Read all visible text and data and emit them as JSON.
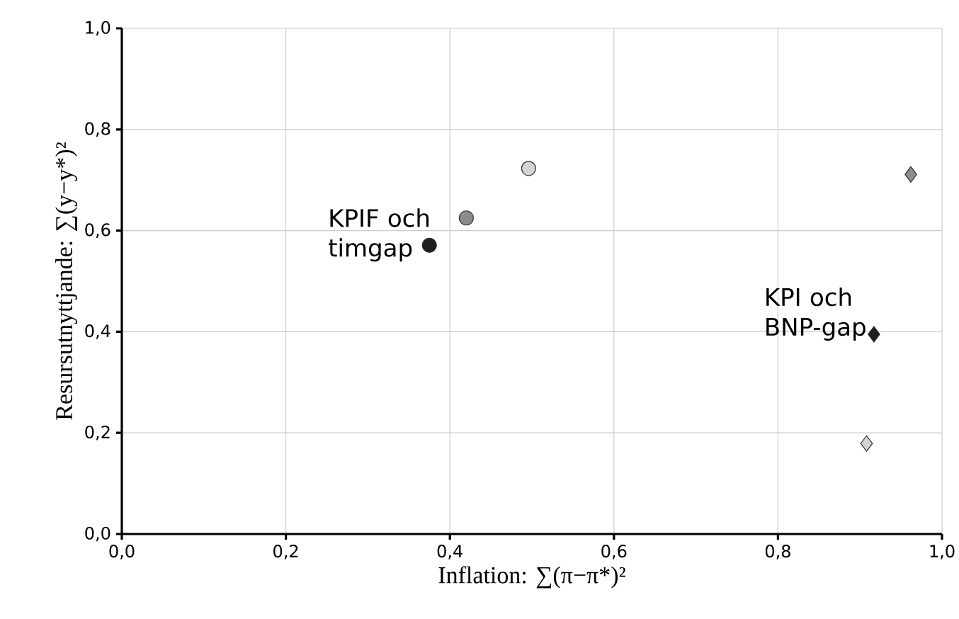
{
  "chart_data": {
    "type": "scatter",
    "xlabel": "Inflation: ∑(π−π*)²",
    "ylabel": "Resursutnyttjande: ∑(y−y*)²",
    "xlim": [
      0,
      1
    ],
    "ylim": [
      0,
      1
    ],
    "xticks": [
      {
        "value": 0,
        "label": "0,0"
      },
      {
        "value": 0.2,
        "label": "0,2"
      },
      {
        "value": 0.4,
        "label": "0,4"
      },
      {
        "value": 0.6,
        "label": "0,6"
      },
      {
        "value": 0.8,
        "label": "0,8"
      },
      {
        "value": 1,
        "label": "1,0"
      }
    ],
    "yticks": [
      {
        "value": 0,
        "label": "0,0"
      },
      {
        "value": 0.2,
        "label": "0,2"
      },
      {
        "value": 0.4,
        "label": "0,4"
      },
      {
        "value": 0.6,
        "label": "0,6"
      },
      {
        "value": 0.8,
        "label": "0,8"
      },
      {
        "value": 1,
        "label": "1,0"
      }
    ],
    "grid": true,
    "series": [
      {
        "marker": "circle",
        "x": [
          0.375,
          0.42,
          0.496
        ],
        "values": [
          0.571,
          0.625,
          0.723
        ],
        "colors": [
          "#1e1e1e",
          "#8c8c8c",
          "#d4d4d4"
        ]
      },
      {
        "marker": "diamond",
        "x": [
          0.917,
          0.962,
          0.908
        ],
        "values": [
          0.395,
          0.711,
          0.179
        ],
        "colors": [
          "#1e1e1e",
          "#8c8c8c",
          "#d4d4d4"
        ]
      }
    ],
    "annotations": [
      {
        "text": "KPIF och timgap",
        "x": 0.375,
        "y": 0.571
      },
      {
        "text": "KPI och BNP-gap",
        "x": 0.917,
        "y": 0.395
      }
    ]
  }
}
